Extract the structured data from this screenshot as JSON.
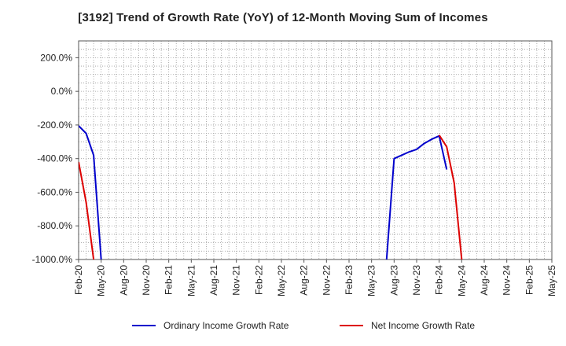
{
  "chart_data": {
    "type": "line",
    "title": "[3192]  Trend of Growth Rate (YoY) of 12-Month Moving Sum of Incomes",
    "xlabel": "",
    "ylabel": "",
    "ylim": [
      -1000,
      300
    ],
    "y_ticks": [
      200,
      0,
      -200,
      -400,
      -600,
      -800,
      -1000
    ],
    "y_tick_labels": [
      "200.0%",
      "0.0%",
      "-200.0%",
      "-400.0%",
      "-600.0%",
      "-800.0%",
      "-1000.0%"
    ],
    "x_range": [
      "2020-02",
      "2025-05"
    ],
    "x_tick_labels": [
      "Feb-20",
      "May-20",
      "Aug-20",
      "Nov-20",
      "Feb-21",
      "May-21",
      "Aug-21",
      "Nov-21",
      "Feb-22",
      "May-22",
      "Aug-22",
      "Nov-22",
      "Feb-23",
      "May-23",
      "Aug-23",
      "Nov-23",
      "Feb-24",
      "May-24",
      "Aug-24",
      "Nov-24",
      "Feb-25",
      "May-25"
    ],
    "grid": true,
    "legend_position": "bottom",
    "series": [
      {
        "name": "Ordinary Income Growth Rate",
        "color": "#0000cc",
        "segments": [
          [
            [
              "2020-02",
              -205
            ],
            [
              "2020-03",
              -250
            ],
            [
              "2020-04",
              -380
            ],
            [
              "2020-05",
              -1000
            ]
          ],
          [
            [
              "2023-07",
              -1000
            ],
            [
              "2023-08",
              -400
            ],
            [
              "2023-09",
              -380
            ],
            [
              "2023-10",
              -360
            ],
            [
              "2023-11",
              -345
            ],
            [
              "2023-12",
              -310
            ],
            [
              "2024-01",
              -285
            ],
            [
              "2024-02",
              -265
            ],
            [
              "2024-03",
              -465
            ]
          ]
        ]
      },
      {
        "name": "Net Income Growth Rate",
        "color": "#dd0000",
        "segments": [
          [
            [
              "2020-02",
              -420
            ],
            [
              "2020-03",
              -660
            ],
            [
              "2020-04",
              -1000
            ]
          ],
          [
            [
              "2024-02",
              -260
            ],
            [
              "2024-03",
              -330
            ],
            [
              "2024-04",
              -545
            ],
            [
              "2024-05",
              -1000
            ]
          ]
        ]
      }
    ]
  }
}
